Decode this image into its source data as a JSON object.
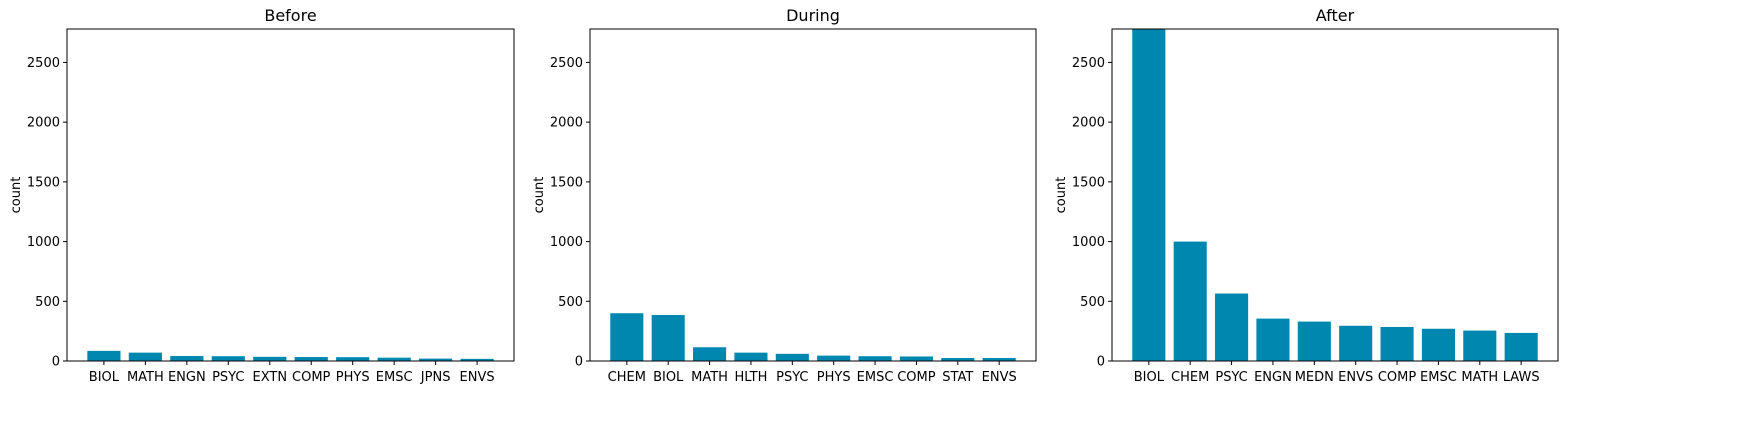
{
  "chart_data": [
    {
      "type": "bar",
      "title": "Before",
      "xlabel": "",
      "ylabel": "count",
      "ylim": [
        0,
        2780
      ],
      "yticks": [
        0,
        500,
        1000,
        1500,
        2000,
        2500
      ],
      "color": "#0087B0",
      "categories": [
        "BIOL",
        "MATH",
        "ENGN",
        "PSYC",
        "EXTN",
        "COMP",
        "PHYS",
        "EMSC",
        "JPNS",
        "ENVS"
      ],
      "values": [
        85,
        70,
        42,
        40,
        35,
        33,
        32,
        28,
        20,
        18
      ]
    },
    {
      "type": "bar",
      "title": "During",
      "xlabel": "",
      "ylabel": "count",
      "ylim": [
        0,
        2780
      ],
      "yticks": [
        0,
        500,
        1000,
        1500,
        2000,
        2500
      ],
      "color": "#0087B0",
      "categories": [
        "CHEM",
        "BIOL",
        "MATH",
        "HLTH",
        "PSYC",
        "PHYS",
        "EMSC",
        "COMP",
        "STAT",
        "ENVS"
      ],
      "values": [
        400,
        385,
        115,
        70,
        60,
        45,
        40,
        38,
        25,
        25
      ]
    },
    {
      "type": "bar",
      "title": "After",
      "xlabel": "",
      "ylabel": "count",
      "ylim": [
        0,
        2780
      ],
      "yticks": [
        0,
        500,
        1000,
        1500,
        2000,
        2500
      ],
      "color": "#0087B0",
      "categories": [
        "BIOL",
        "CHEM",
        "PSYC",
        "ENGN",
        "MEDN",
        "ENVS",
        "COMP",
        "EMSC",
        "MATH",
        "LAWS"
      ],
      "values": [
        2780,
        1000,
        565,
        355,
        330,
        295,
        285,
        270,
        255,
        235
      ]
    }
  ]
}
